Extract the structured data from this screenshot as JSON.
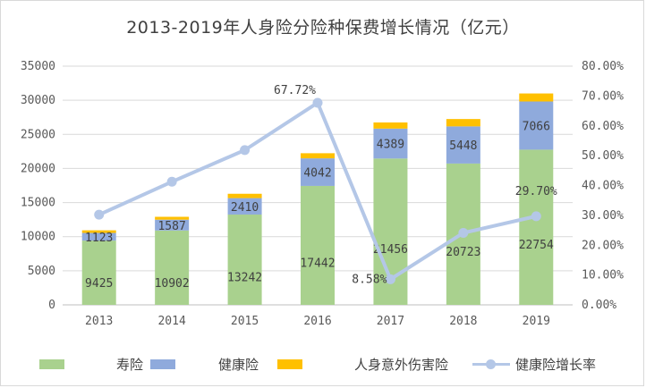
{
  "chart_data": {
    "type": "bar",
    "title": "2013-2019年人身险分险种保费增长情况（亿元）",
    "categories": [
      "2013",
      "2014",
      "2015",
      "2016",
      "2017",
      "2018",
      "2019"
    ],
    "series": [
      {
        "name": "寿险",
        "kind": "bar",
        "axis": "left",
        "color": "#a9d18e",
        "values": [
          9425,
          10902,
          13242,
          17442,
          21456,
          20723,
          22754
        ]
      },
      {
        "name": "健康险",
        "kind": "bar",
        "axis": "left",
        "color": "#8faadc",
        "values": [
          1123,
          1587,
          2410,
          4042,
          4389,
          5448,
          7066
        ]
      },
      {
        "name": "人身意外伤害险",
        "kind": "bar",
        "axis": "left",
        "color": "#ffc000",
        "values": [
          384,
          423,
          636,
          749,
          901,
          1076,
          1175
        ]
      },
      {
        "name": "健康险增长率",
        "kind": "line",
        "axis": "right",
        "color": "#b4c7e7",
        "values": [
          30.22,
          41.27,
          51.87,
          67.72,
          8.58,
          24.12,
          29.7
        ]
      }
    ],
    "data_labels": {
      "健康险增长率": [
        "",
        "",
        "",
        "67.72%",
        "8.58%",
        "",
        "29.70%"
      ]
    },
    "ylim": [
      0,
      35000
    ],
    "y_ticks": [
      "0",
      "5000",
      "10000",
      "15000",
      "20000",
      "25000",
      "30000",
      "35000"
    ],
    "y2lim": [
      0,
      80
    ],
    "y2_ticks": [
      "0.00%",
      "10.00%",
      "20.00%",
      "30.00%",
      "40.00%",
      "50.00%",
      "60.00%",
      "70.00%",
      "80.00%"
    ],
    "grid": true,
    "legend_position": "bottom",
    "stacked": true
  }
}
